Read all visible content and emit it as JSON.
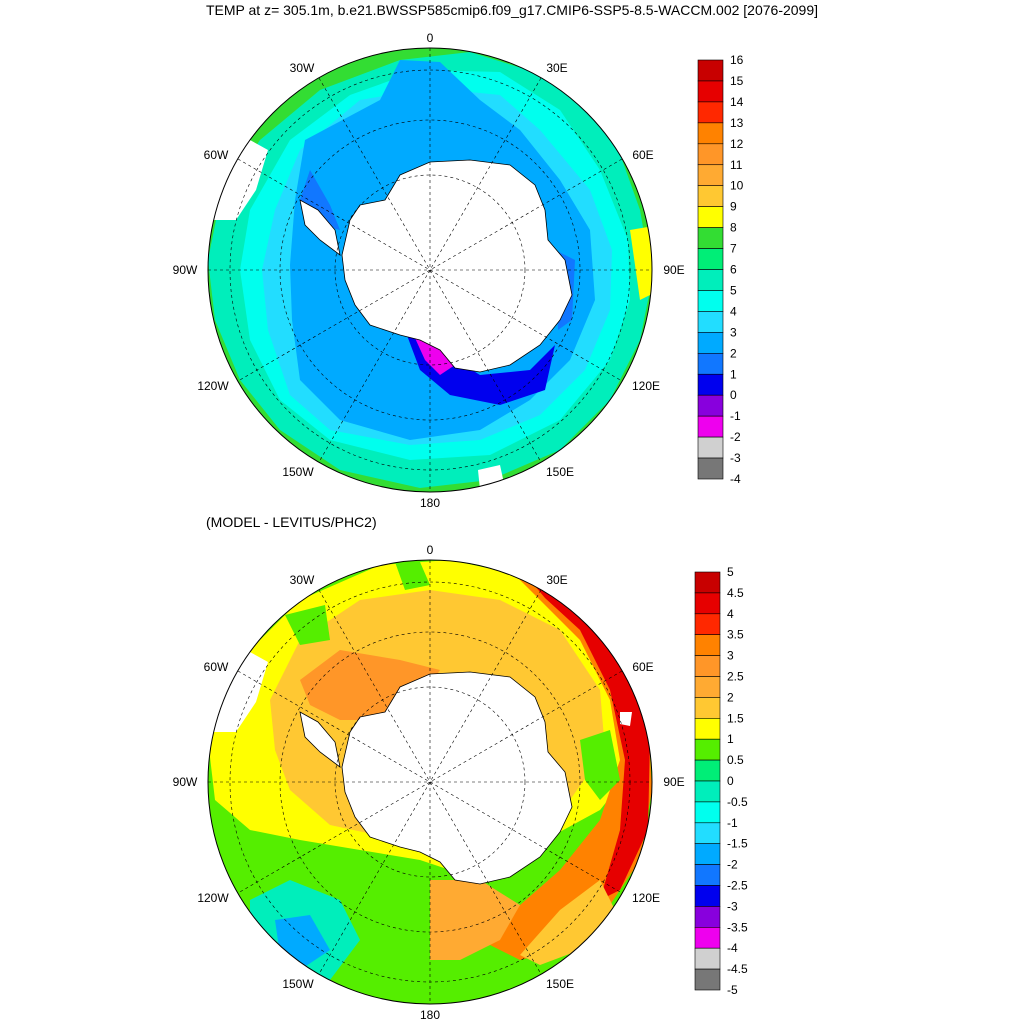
{
  "title": "TEMP at z= 305.1m, b.e21.BWSSP585cmip6.f09_g17.CMIP6-SSP5-8.5-WACCM.002 [2076-2099]",
  "diff_title": "(MODEL - LEVITUS/PHC2)",
  "map_labels": {
    "lon_0": "0",
    "lon_30e": "30E",
    "lon_60e": "60E",
    "lon_90e": "90E",
    "lon_120e": "120E",
    "lon_150e": "150E",
    "lon_180": "180",
    "lon_150w": "150W",
    "lon_120w": "120W",
    "lon_90w": "90W",
    "lon_60w": "60W",
    "lon_30w": "30W"
  },
  "colorbar_top": {
    "labels": [
      "16",
      "15",
      "14",
      "13",
      "12",
      "11",
      "10",
      "9",
      "8",
      "7",
      "6",
      "5",
      "4",
      "3",
      "2",
      "1",
      "0",
      "-1",
      "-2",
      "-3",
      "-4"
    ],
    "colors": [
      "#c80000",
      "#e60000",
      "#ff2800",
      "#ff8200",
      "#ff9628",
      "#ffaa32",
      "#ffc832",
      "#ffff00",
      "#33dd33",
      "#00ee77",
      "#00eebb",
      "#00ffee",
      "#22ddff",
      "#00aaff",
      "#1177ff",
      "#0000ee",
      "#8800dd",
      "#ee00ee",
      "#d0d0d0",
      "#777777"
    ]
  },
  "colorbar_bottom": {
    "labels": [
      "5",
      "4.5",
      "4",
      "3.5",
      "3",
      "2.5",
      "2",
      "1.5",
      "1",
      "0.5",
      "0",
      "-0.5",
      "-1",
      "-1.5",
      "-2",
      "-2.5",
      "-3",
      "-3.5",
      "-4",
      "-4.5",
      "-5"
    ],
    "colors": [
      "#c80000",
      "#e60000",
      "#ff2800",
      "#ff8200",
      "#ff9628",
      "#ffaa32",
      "#ffc832",
      "#ffff00",
      "#55ee00",
      "#00ee77",
      "#00eebb",
      "#00ffee",
      "#22ddff",
      "#00aaff",
      "#1177ff",
      "#0000ee",
      "#8800dd",
      "#ee00ee",
      "#d0d0d0",
      "#777777"
    ]
  },
  "colors": {
    "land": "#ffffff",
    "coast": "#000000"
  }
}
